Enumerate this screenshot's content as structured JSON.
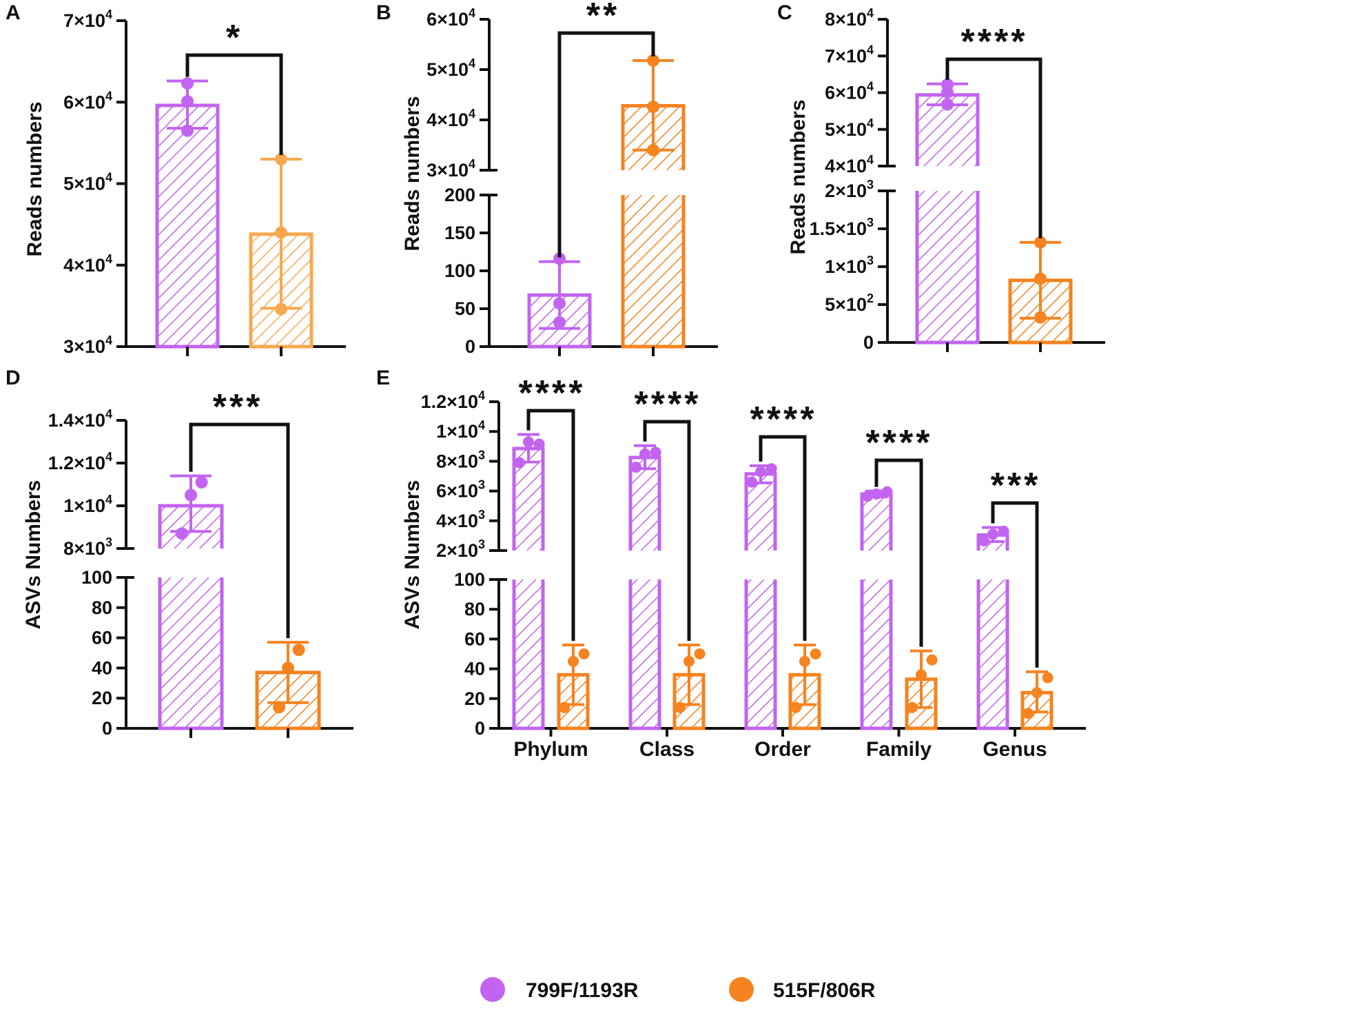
{
  "colors": {
    "purple": "#C264F0",
    "orange": "#F5831F",
    "orange_light": "#F7A84E",
    "axis": "#111111"
  },
  "legend": [
    {
      "label": "799F/1193R",
      "color": "#C264F0"
    },
    {
      "label": "515F/806R",
      "color": "#F5831F"
    }
  ],
  "chart_data": [
    {
      "panel": "A",
      "type": "bar",
      "ylabel": "Reads numbers",
      "ylim": [
        30000,
        70000
      ],
      "yticks": [
        {
          "v": 30000,
          "label": "3×10",
          "exp": "4"
        },
        {
          "v": 40000,
          "label": "4×10",
          "exp": "4"
        },
        {
          "v": 50000,
          "label": "5×10",
          "exp": "4"
        },
        {
          "v": 60000,
          "label": "6×10",
          "exp": "4"
        },
        {
          "v": 70000,
          "label": "7×10",
          "exp": "4"
        }
      ],
      "categories": [
        ""
      ],
      "series": [
        {
          "name": "799F/1193R",
          "values": [
            59600
          ],
          "err_low": [
            56800
          ],
          "err_high": [
            62600
          ],
          "points": [
            [
              56500,
              60100,
              62300
            ]
          ]
        },
        {
          "name": "515F/806R",
          "values": [
            43800
          ],
          "err_low": [
            34700
          ],
          "err_high": [
            53000
          ],
          "points": [
            [
              34600,
              44000,
              53000
            ]
          ]
        }
      ],
      "significance": [
        "*"
      ]
    },
    {
      "panel": "B",
      "type": "bar",
      "ylabel": "Reads numbers",
      "broken_axis": {
        "lower": [
          0,
          200
        ],
        "upper": [
          30000,
          60000
        ]
      },
      "yticks": [
        {
          "v": 0,
          "label": "0"
        },
        {
          "v": 50,
          "label": "50"
        },
        {
          "v": 100,
          "label": "100"
        },
        {
          "v": 150,
          "label": "150"
        },
        {
          "v": 200,
          "label": "200"
        },
        {
          "v": 30000,
          "label": "3×10",
          "exp": "4"
        },
        {
          "v": 40000,
          "label": "4×10",
          "exp": "4"
        },
        {
          "v": 50000,
          "label": "5×10",
          "exp": "4"
        },
        {
          "v": 60000,
          "label": "6×10",
          "exp": "4"
        }
      ],
      "categories": [
        ""
      ],
      "series": [
        {
          "name": "799F/1193R",
          "values": [
            68
          ],
          "err_low": [
            24
          ],
          "err_high": [
            112
          ],
          "points": [
            [
              32,
              57,
              116
            ]
          ]
        },
        {
          "name": "515F/806R",
          "values": [
            42800
          ],
          "err_low": [
            34000
          ],
          "err_high": [
            51800
          ],
          "points": [
            [
              34000,
              42600,
              51800
            ]
          ]
        }
      ],
      "significance": [
        "**"
      ]
    },
    {
      "panel": "C",
      "type": "bar",
      "ylabel": "Reads numbers",
      "broken_axis": {
        "lower": [
          0,
          2000
        ],
        "upper": [
          40000,
          80000
        ]
      },
      "yticks": [
        {
          "v": 0,
          "label": "0"
        },
        {
          "v": 500,
          "label": "5×10",
          "exp": "2"
        },
        {
          "v": 1000,
          "label": "1×10",
          "exp": "3"
        },
        {
          "v": 1500,
          "label": "1.5×10",
          "exp": "3"
        },
        {
          "v": 2000,
          "label": "2×10",
          "exp": "3"
        },
        {
          "v": 40000,
          "label": "4×10",
          "exp": "4"
        },
        {
          "v": 50000,
          "label": "5×10",
          "exp": "4"
        },
        {
          "v": 60000,
          "label": "6×10",
          "exp": "4"
        },
        {
          "v": 70000,
          "label": "7×10",
          "exp": "4"
        },
        {
          "v": 80000,
          "label": "8×10",
          "exp": "4"
        }
      ],
      "categories": [
        ""
      ],
      "series": [
        {
          "name": "799F/1193R",
          "values": [
            59400
          ],
          "err_low": [
            56700
          ],
          "err_high": [
            62400
          ],
          "points": [
            [
              56800,
              60100,
              62200
            ]
          ]
        },
        {
          "name": "515F/806R",
          "values": [
            820
          ],
          "err_low": [
            320
          ],
          "err_high": [
            1320
          ],
          "points": [
            [
              330,
              840,
              1320
            ]
          ]
        }
      ],
      "significance": [
        "****"
      ]
    },
    {
      "panel": "D",
      "type": "bar",
      "ylabel": "ASVs Numbers",
      "broken_axis": {
        "lower": [
          0,
          100
        ],
        "upper": [
          8000,
          14000
        ]
      },
      "yticks": [
        {
          "v": 0,
          "label": "0"
        },
        {
          "v": 20,
          "label": "20"
        },
        {
          "v": 40,
          "label": "40"
        },
        {
          "v": 60,
          "label": "60"
        },
        {
          "v": 80,
          "label": "80"
        },
        {
          "v": 100,
          "label": "100"
        },
        {
          "v": 8000,
          "label": "8×10",
          "exp": "3"
        },
        {
          "v": 10000,
          "label": "1×10",
          "exp": "4"
        },
        {
          "v": 12000,
          "label": "1.2×10",
          "exp": "4"
        },
        {
          "v": 14000,
          "label": "1.4×10",
          "exp": "4"
        }
      ],
      "categories": [
        ""
      ],
      "series": [
        {
          "name": "799F/1193R",
          "values": [
            10000
          ],
          "err_low": [
            8800
          ],
          "err_high": [
            11400
          ],
          "points": [
            [
              8700,
              10500,
              11100
            ]
          ]
        },
        {
          "name": "515F/806R",
          "values": [
            37
          ],
          "err_low": [
            17
          ],
          "err_high": [
            57
          ],
          "points": [
            [
              14,
              40,
              52
            ]
          ]
        }
      ],
      "significance": [
        "***"
      ]
    },
    {
      "panel": "E",
      "type": "bar",
      "ylabel": "ASVs Numbers",
      "broken_axis": {
        "lower": [
          0,
          100
        ],
        "upper": [
          2000,
          12000
        ]
      },
      "yticks": [
        {
          "v": 0,
          "label": "0"
        },
        {
          "v": 20,
          "label": "20"
        },
        {
          "v": 40,
          "label": "40"
        },
        {
          "v": 60,
          "label": "60"
        },
        {
          "v": 80,
          "label": "80"
        },
        {
          "v": 100,
          "label": "100"
        },
        {
          "v": 2000,
          "label": "2×10",
          "exp": "3"
        },
        {
          "v": 4000,
          "label": "4×10",
          "exp": "3"
        },
        {
          "v": 6000,
          "label": "6×10",
          "exp": "3"
        },
        {
          "v": 8000,
          "label": "8×10",
          "exp": "3"
        },
        {
          "v": 10000,
          "label": "1×10",
          "exp": "4"
        },
        {
          "v": 12000,
          "label": "1.2×10",
          "exp": "4"
        }
      ],
      "categories": [
        "Phylum",
        "Class",
        "Order",
        "Family",
        "Genus"
      ],
      "series": [
        {
          "name": "799F/1193R",
          "values": [
            8850,
            8250,
            7150,
            5800,
            3050
          ],
          "err_low": [
            7950,
            7500,
            6550,
            5600,
            2600
          ],
          "err_high": [
            9800,
            9050,
            7700,
            6000,
            3550
          ],
          "points": [
            [
              7900,
              9300,
              9150
            ],
            [
              7600,
              8500,
              8600
            ],
            [
              6600,
              7300,
              7500
            ],
            [
              5650,
              5800,
              5950
            ],
            [
              2650,
              3100,
              3300
            ]
          ]
        },
        {
          "name": "515F/806R",
          "values": [
            36,
            36,
            36,
            33,
            24
          ],
          "err_low": [
            16,
            16,
            16,
            14,
            11
          ],
          "err_high": [
            56,
            56,
            56,
            52,
            38
          ],
          "points": [
            [
              14,
              45,
              50
            ],
            [
              14,
              45,
              50
            ],
            [
              14,
              45,
              50
            ],
            [
              14,
              36,
              46
            ],
            [
              10,
              24,
              34
            ]
          ]
        }
      ],
      "significance": [
        "****",
        "****",
        "****",
        "****",
        "***"
      ]
    }
  ]
}
